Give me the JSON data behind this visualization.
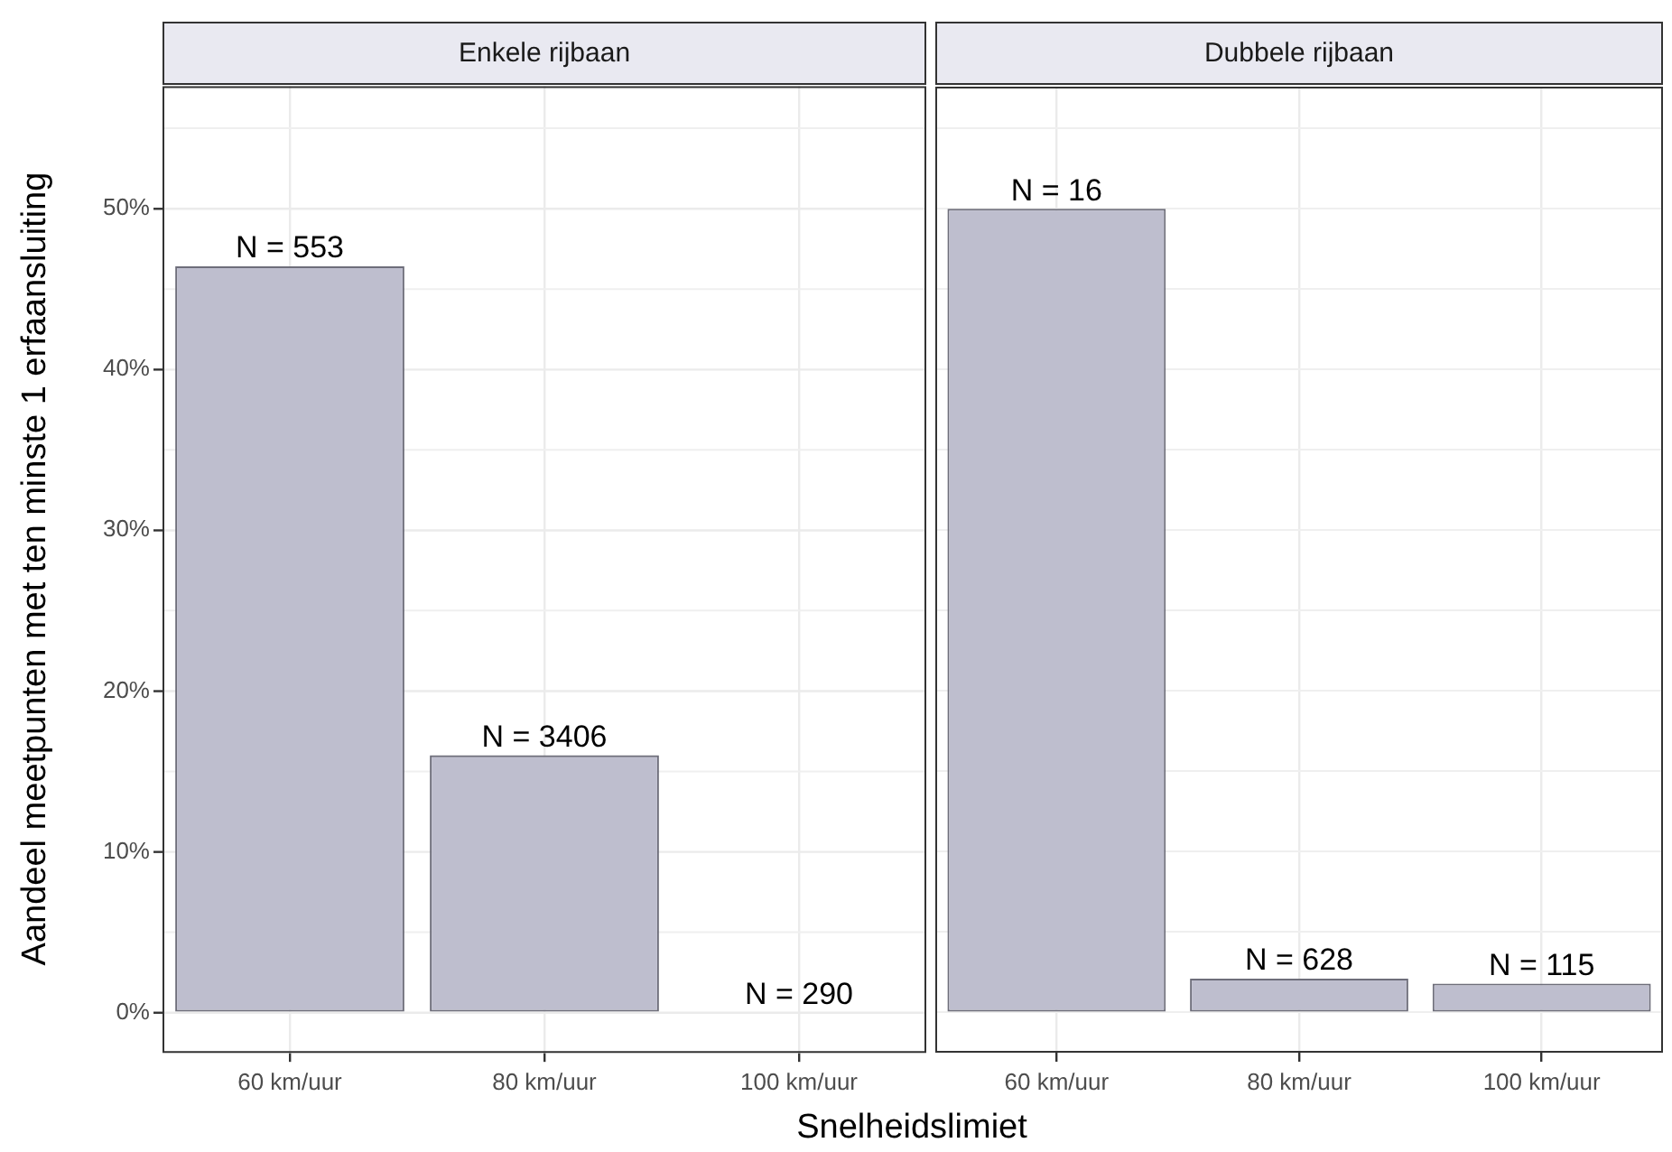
{
  "chart_data": [
    {
      "type": "bar",
      "title": "Enkele rijbaan",
      "xlabel": "Snelheidslimiet",
      "ylabel": "Aandeel meetpunten met ten minste 1 erfaansluiting",
      "categories": [
        "60 km/uur",
        "80 km/uur",
        "100 km/uur"
      ],
      "values": [
        46.4,
        16.0,
        0
      ],
      "color": "#bebece",
      "annotations": [
        {
          "text": "N = 553",
          "x": "60 km/uur",
          "y": 46.4
        },
        {
          "text": "N = 3406",
          "x": "80 km/uur",
          "y": 16.0
        },
        {
          "text": "N = 290",
          "x": "100 km/uur",
          "y": 0
        }
      ],
      "ylim": [
        -2.5,
        57.6
      ],
      "yticks": [
        {
          "value": 0,
          "label": "0%"
        },
        {
          "value": 5,
          "label": null
        },
        {
          "value": 10,
          "label": "10%"
        },
        {
          "value": 15,
          "label": null
        },
        {
          "value": 20,
          "label": "20%"
        },
        {
          "value": 25,
          "label": null
        },
        {
          "value": 30,
          "label": "30%"
        },
        {
          "value": 35,
          "label": null
        },
        {
          "value": 40,
          "label": "40%"
        },
        {
          "value": 45,
          "label": null
        },
        {
          "value": 50,
          "label": "50%"
        },
        {
          "value": 55,
          "label": null
        }
      ],
      "grid": true
    },
    {
      "type": "bar",
      "title": "Dubbele rijbaan",
      "categories": [
        "60 km/uur",
        "80 km/uur",
        "100 km/uur"
      ],
      "values": [
        50.0,
        2.1,
        1.8
      ],
      "color": "#bebece",
      "annotations": [
        {
          "text": "N = 16",
          "x": "60 km/uur",
          "y": 50.0
        },
        {
          "text": "N = 628",
          "x": "80 km/uur",
          "y": 2.1
        },
        {
          "text": "N = 115",
          "x": "100 km/uur",
          "y": 1.8
        }
      ],
      "ylim": [
        -2.5,
        57.6
      ],
      "yticks": [
        {
          "value": 0,
          "label": null
        },
        {
          "value": 5,
          "label": null
        },
        {
          "value": 10,
          "label": null
        },
        {
          "value": 15,
          "label": null
        },
        {
          "value": 20,
          "label": null
        },
        {
          "value": 25,
          "label": null
        },
        {
          "value": 30,
          "label": null
        },
        {
          "value": 35,
          "label": null
        },
        {
          "value": 40,
          "label": null
        },
        {
          "value": 45,
          "label": null
        },
        {
          "value": 50,
          "label": null
        },
        {
          "value": 55,
          "label": null
        }
      ],
      "grid": true,
      "tick_labels": "x"
    }
  ]
}
